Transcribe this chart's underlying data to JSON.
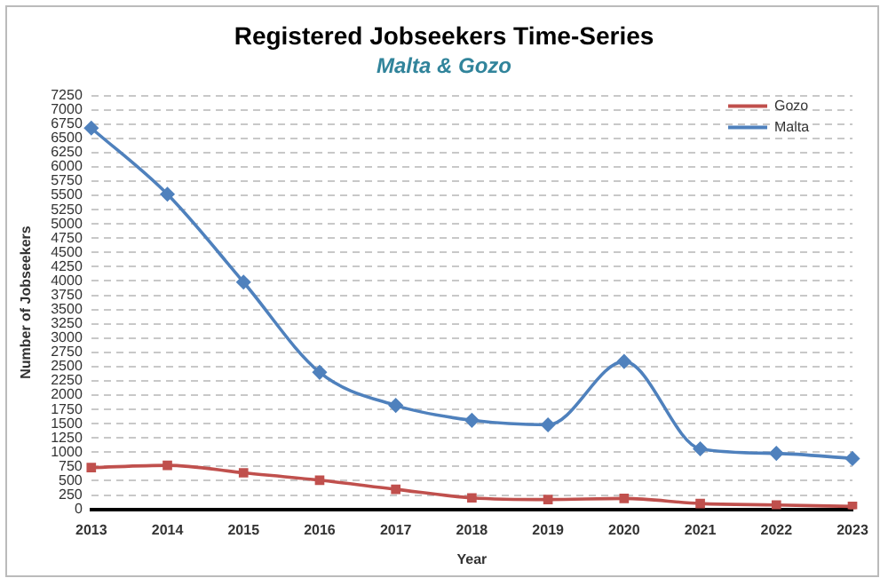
{
  "chart_data": {
    "type": "line",
    "title": "Registered Jobseekers Time-Series",
    "subtitle": "Malta & Gozo",
    "xlabel": "Year",
    "ylabel": "Number of Jobseekers",
    "categories": [
      "2013",
      "2014",
      "2015",
      "2016",
      "2017",
      "2018",
      "2019",
      "2020",
      "2021",
      "2022",
      "2023"
    ],
    "series": [
      {
        "name": "Gozo",
        "color": "#c0504d",
        "marker": "square",
        "values": [
          730,
          770,
          640,
          510,
          350,
          200,
          170,
          190,
          100,
          75,
          50
        ]
      },
      {
        "name": "Malta",
        "color": "#4f81bd",
        "marker": "diamond",
        "values": [
          6680,
          5520,
          3980,
          2400,
          1820,
          1560,
          1480,
          2590,
          1060,
          980,
          890
        ]
      }
    ],
    "ylim": [
      0,
      7250
    ],
    "yticks": [
      0,
      250,
      500,
      750,
      1000,
      1250,
      1500,
      1750,
      2000,
      2250,
      2500,
      2750,
      3000,
      3250,
      3500,
      3750,
      4000,
      4250,
      4500,
      4750,
      5000,
      5250,
      5500,
      5750,
      6000,
      6250,
      6500,
      6750,
      7000,
      7250
    ],
    "grid": "y",
    "line_style": "solid",
    "legend": "top right"
  }
}
